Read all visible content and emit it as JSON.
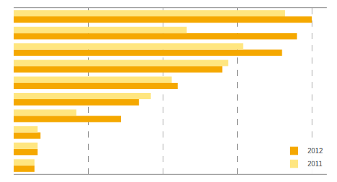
{
  "chart_data": {
    "type": "bar",
    "orientation": "horizontal",
    "categories": [
      null,
      null,
      null,
      null,
      null,
      null,
      null,
      null,
      null,
      null
    ],
    "series": [
      {
        "name": "2012",
        "color": "#F5A800",
        "values": [
          100,
          95,
          90,
          70,
          55,
          42,
          36,
          9,
          8,
          7
        ]
      },
      {
        "name": "2011",
        "color": "#FFE680",
        "values": [
          91,
          58,
          77,
          72,
          53,
          46,
          21,
          8,
          8,
          7
        ]
      }
    ],
    "xlim": [
      0,
      105
    ],
    "xticks": [
      25,
      50,
      75,
      100
    ],
    "grid": true,
    "legend": "lower right",
    "tick_labels": false
  }
}
